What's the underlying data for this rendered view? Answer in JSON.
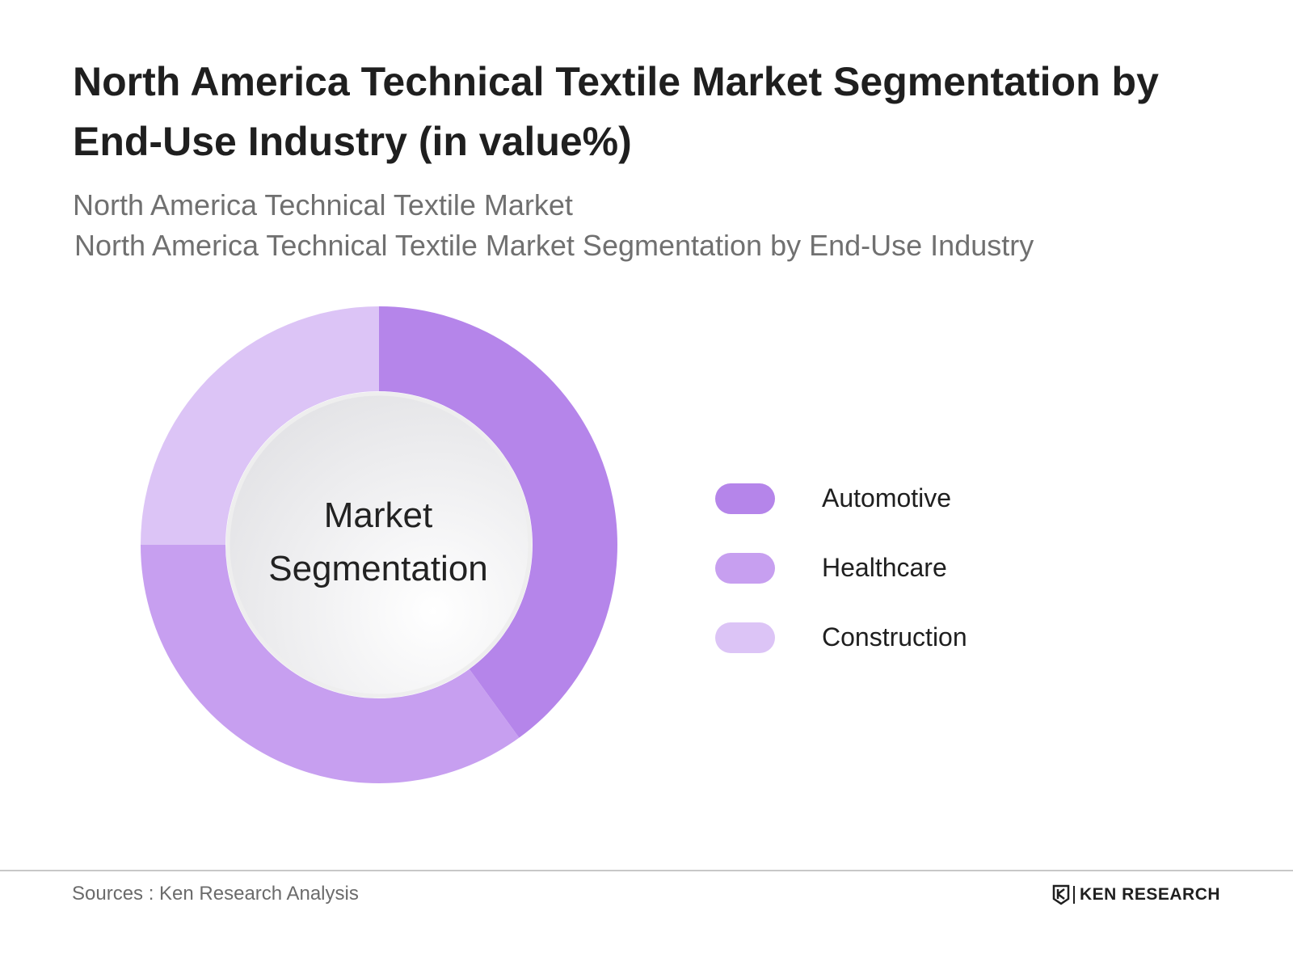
{
  "chart_data": {
    "type": "pie",
    "title": "North America Technical Textile Market Segmentation by End-Use Industry (in value%)",
    "subtitle_1": "North America Technical Textile Market",
    "subtitle_2": "North America Technical Textile Market Segmentation by End-Use Industry",
    "center_label_1": "Market",
    "center_label_2": "Segmentation",
    "categories": [
      "Automotive",
      "Healthcare",
      "Construction"
    ],
    "values": [
      40,
      35,
      25
    ],
    "colors": [
      "#b585ea",
      "#c79ff0",
      "#dcc4f6"
    ],
    "legend_position": "right"
  },
  "footer": {
    "source": "Sources : Ken Research Analysis",
    "brand": "KEN RESEARCH"
  }
}
